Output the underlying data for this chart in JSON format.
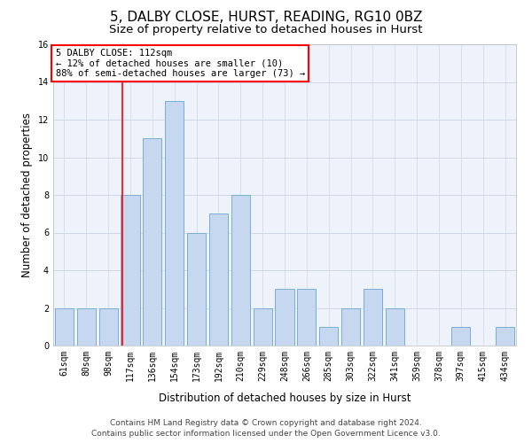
{
  "title": "5, DALBY CLOSE, HURST, READING, RG10 0BZ",
  "subtitle": "Size of property relative to detached houses in Hurst",
  "xlabel": "Distribution of detached houses by size in Hurst",
  "ylabel": "Number of detached properties",
  "categories": [
    "61sqm",
    "80sqm",
    "98sqm",
    "117sqm",
    "136sqm",
    "154sqm",
    "173sqm",
    "192sqm",
    "210sqm",
    "229sqm",
    "248sqm",
    "266sqm",
    "285sqm",
    "303sqm",
    "322sqm",
    "341sqm",
    "359sqm",
    "378sqm",
    "397sqm",
    "415sqm",
    "434sqm"
  ],
  "values": [
    2,
    2,
    2,
    8,
    11,
    13,
    6,
    7,
    8,
    2,
    3,
    3,
    1,
    2,
    3,
    2,
    0,
    0,
    1,
    0,
    1
  ],
  "bar_color": "#c5d8f0",
  "bar_edge_color": "#7aaed4",
  "bar_edge_width": 0.7,
  "red_line_x": 2.62,
  "annotation_lines": [
    "5 DALBY CLOSE: 112sqm",
    "← 12% of detached houses are smaller (10)",
    "88% of semi-detached houses are larger (73) →"
  ],
  "annotation_box_color": "white",
  "annotation_box_edge_color": "red",
  "ylim": [
    0,
    16
  ],
  "yticks": [
    0,
    2,
    4,
    6,
    8,
    10,
    12,
    14,
    16
  ],
  "footer_line1": "Contains HM Land Registry data © Crown copyright and database right 2024.",
  "footer_line2": "Contains public sector information licensed under the Open Government Licence v3.0.",
  "grid_color": "#cdd8ea",
  "background_color": "#eef2fa",
  "title_fontsize": 11,
  "subtitle_fontsize": 9.5,
  "axis_label_fontsize": 8.5,
  "tick_fontsize": 7,
  "footer_fontsize": 6.5,
  "annotation_fontsize": 7.5
}
